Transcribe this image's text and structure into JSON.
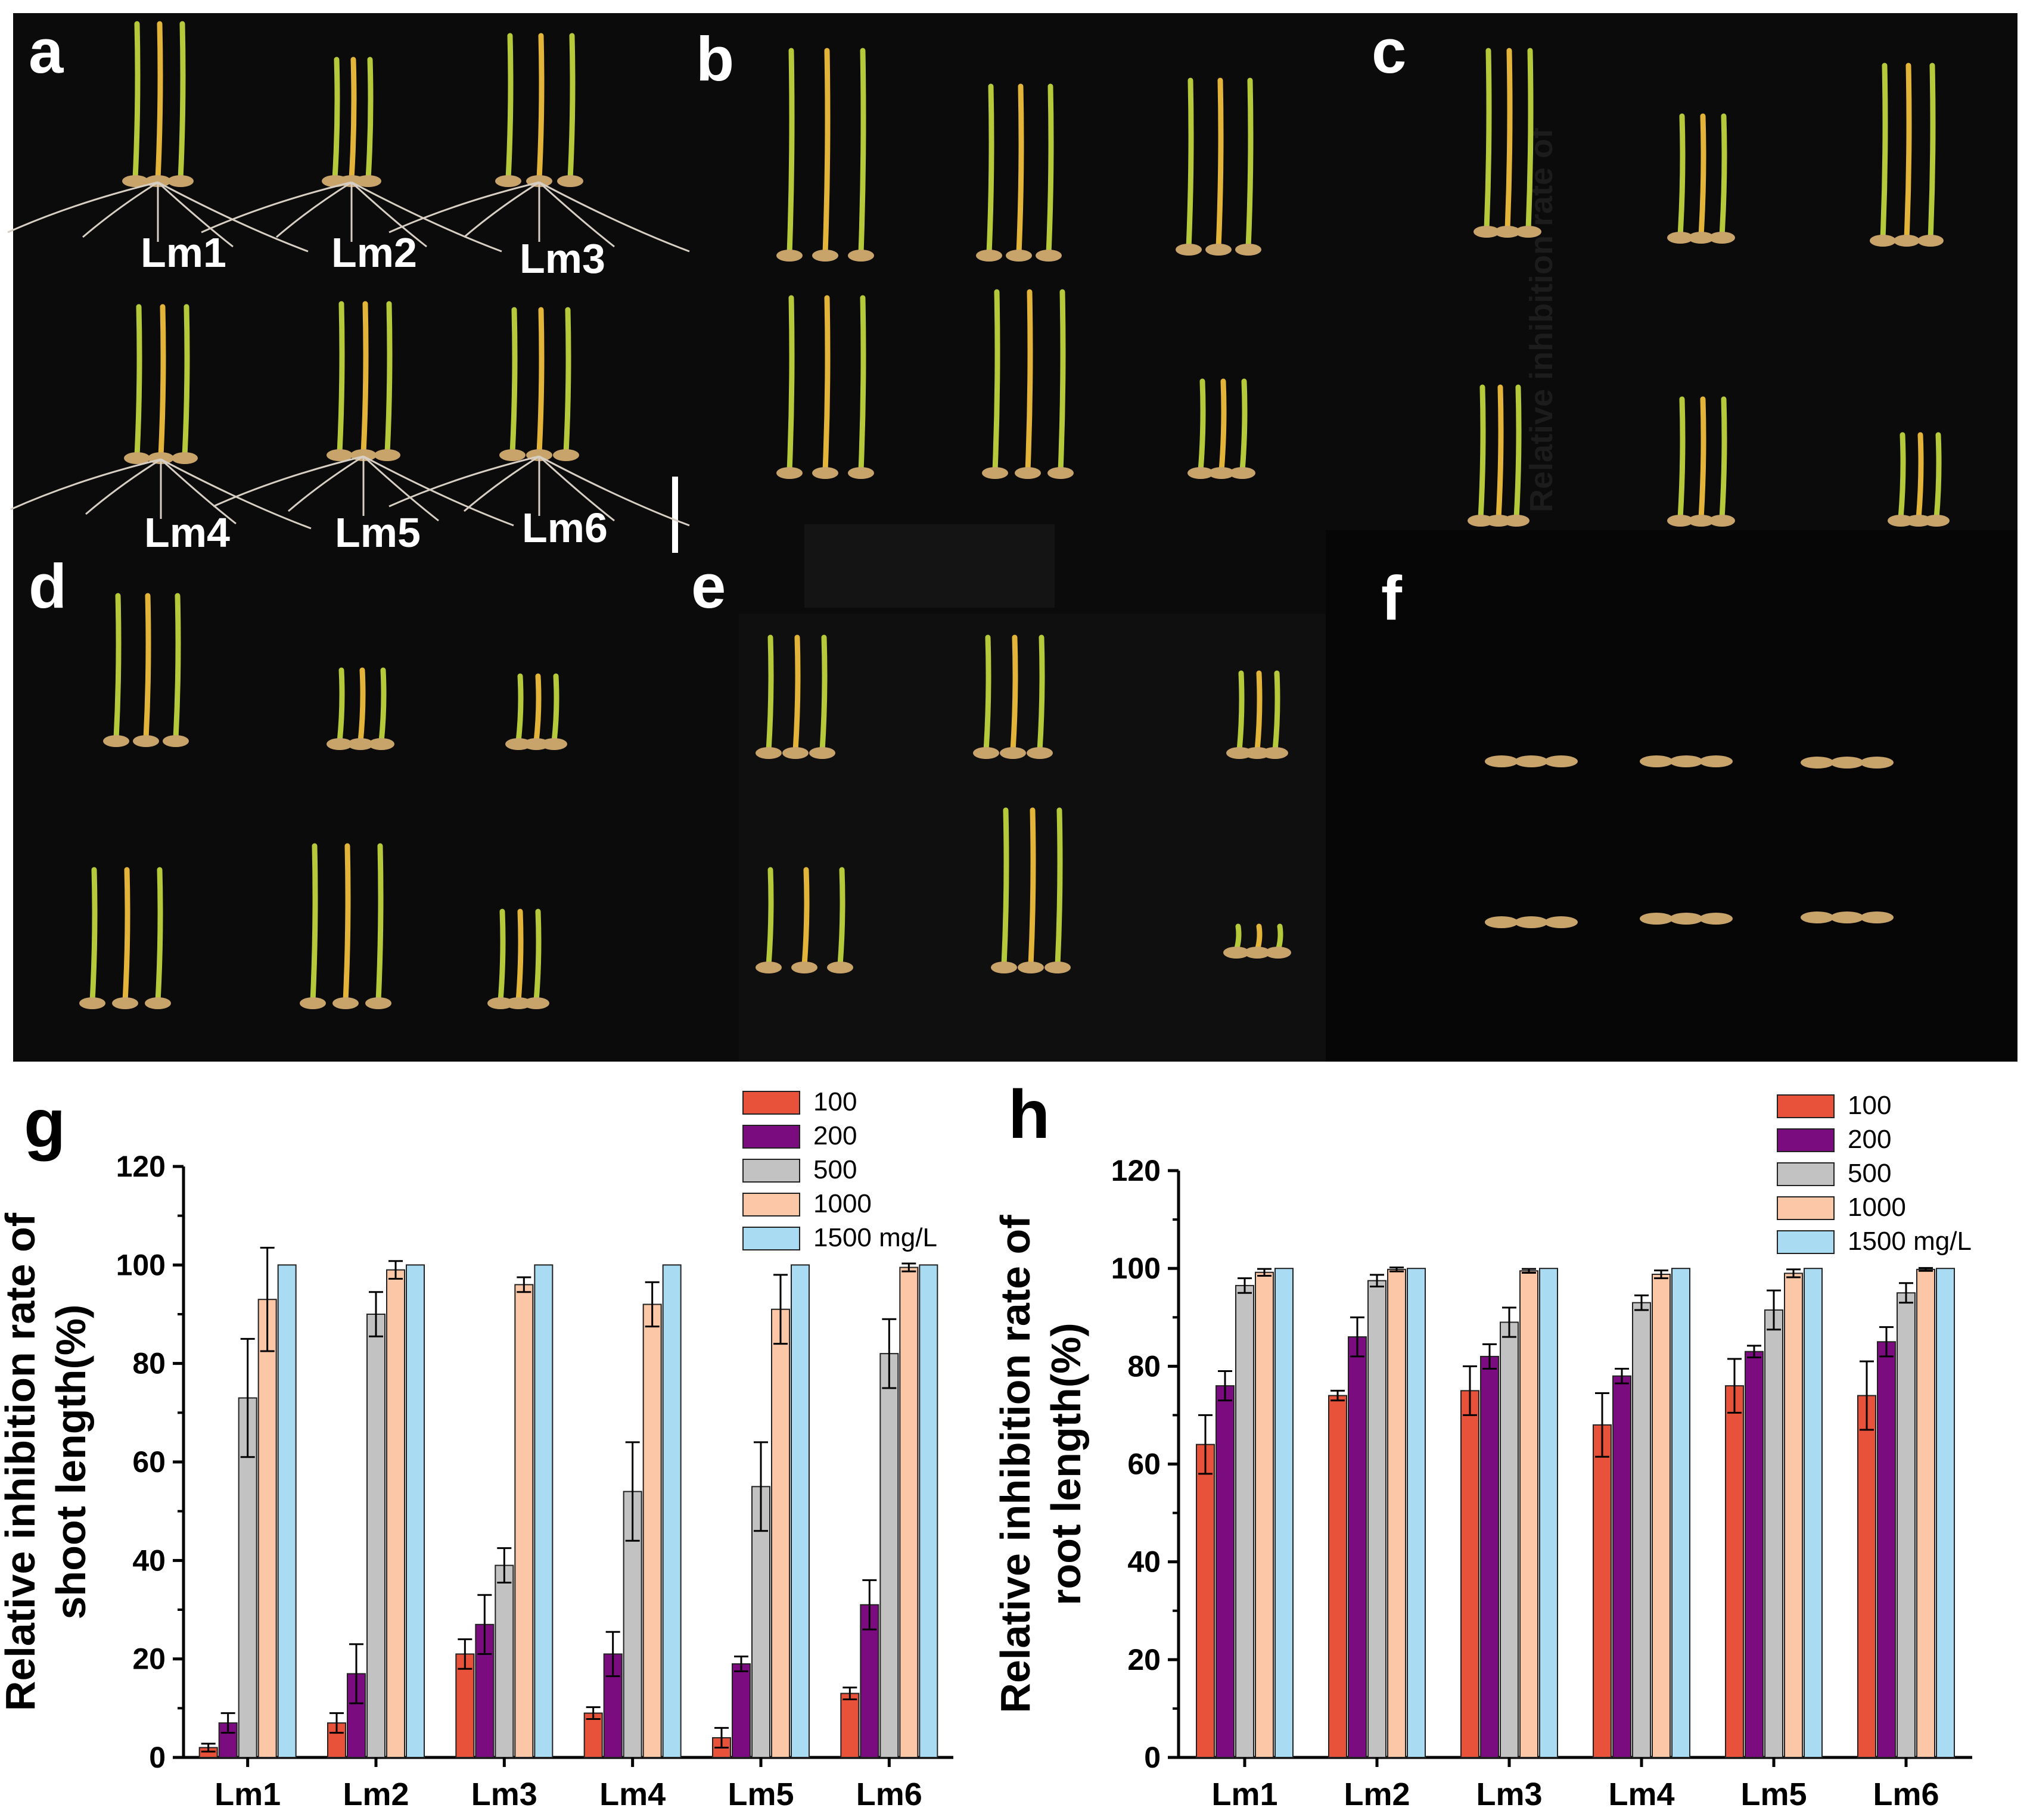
{
  "photo_panels": {
    "a": {
      "letter": "a",
      "labels": [
        "Lm1",
        "Lm2",
        "Lm3",
        "Lm4",
        "Lm5",
        "Lm6"
      ]
    },
    "b": {
      "letter": "b"
    },
    "c": {
      "letter": "c",
      "overlay_text": "Relative inhibition rate of"
    },
    "d": {
      "letter": "d"
    },
    "e": {
      "letter": "e"
    },
    "f": {
      "letter": "f"
    }
  },
  "colors": {
    "photo_bg": "#0b0b0b",
    "seedling_green": "#b5c93a",
    "seedling_yellow": "#e2b43a",
    "root_white": "#d8cfc4",
    "seed_tan": "#c9a46a"
  },
  "chart_data": [
    {
      "panel": "g",
      "type": "bar",
      "categories": [
        "Lm1",
        "Lm2",
        "Lm3",
        "Lm4",
        "Lm5",
        "Lm6"
      ],
      "series": [
        {
          "name": "100",
          "color": "#e8523a",
          "values": [
            2,
            7,
            21,
            9,
            4,
            13
          ],
          "errors": [
            0.8,
            2,
            3,
            1.2,
            2,
            1.2
          ]
        },
        {
          "name": "200",
          "color": "#7b0c80",
          "values": [
            7,
            17,
            27,
            21,
            19,
            31
          ],
          "errors": [
            2,
            6,
            6,
            4.5,
            1.5,
            5
          ]
        },
        {
          "name": "500",
          "color": "#c2c2c2",
          "values": [
            73,
            90,
            39,
            54,
            55,
            82
          ],
          "errors": [
            12,
            4.5,
            3.5,
            10,
            9,
            7
          ]
        },
        {
          "name": "1000",
          "color": "#fbc7a6",
          "values": [
            93,
            99,
            96,
            92,
            91,
            99.5
          ],
          "errors": [
            10.5,
            1.8,
            1.5,
            4.5,
            7,
            0.8
          ]
        },
        {
          "name": "1500 mg/L",
          "color": "#a9dcf3",
          "values": [
            100,
            100,
            100,
            100,
            100,
            100
          ],
          "errors": [
            0,
            0,
            0,
            0,
            0,
            0
          ]
        }
      ],
      "ylabel_line1": "Relative inhibition rate of",
      "ylabel_line2": "shoot length(%)",
      "ylim": [
        0,
        120
      ],
      "yticks": [
        "0",
        "20",
        "40",
        "60",
        "80",
        "100",
        "120"
      ],
      "legend_position": "top-right"
    },
    {
      "panel": "h",
      "type": "bar",
      "categories": [
        "Lm1",
        "Lm2",
        "Lm3",
        "Lm4",
        "Lm5",
        "Lm6"
      ],
      "series": [
        {
          "name": "100",
          "color": "#e8523a",
          "values": [
            64,
            74,
            75,
            68,
            76,
            74
          ],
          "errors": [
            6,
            1,
            5,
            6.5,
            5.5,
            7
          ]
        },
        {
          "name": "200",
          "color": "#7b0c80",
          "values": [
            76,
            86,
            82,
            78,
            83,
            85
          ],
          "errors": [
            3,
            4,
            2.5,
            1.5,
            1.2,
            3
          ]
        },
        {
          "name": "500",
          "color": "#c2c2c2",
          "values": [
            96.5,
            97.5,
            89,
            93,
            91.5,
            95
          ],
          "errors": [
            1.5,
            1.2,
            3,
            1.5,
            4,
            2
          ]
        },
        {
          "name": "1000",
          "color": "#fbc7a6",
          "values": [
            99.2,
            99.8,
            99.5,
            98.8,
            99,
            99.8
          ],
          "errors": [
            0.7,
            0.4,
            0.4,
            0.8,
            0.8,
            0.3
          ]
        },
        {
          "name": "1500 mg/L",
          "color": "#a9dcf3",
          "values": [
            100,
            100,
            100,
            100,
            100,
            100
          ],
          "errors": [
            0,
            0,
            0,
            0,
            0,
            0
          ]
        }
      ],
      "ylabel_line1": "Relative inhibition rate of",
      "ylabel_line2": "root length(%)",
      "ylim": [
        0,
        120
      ],
      "yticks": [
        "0",
        "20",
        "40",
        "60",
        "80",
        "100",
        "120"
      ],
      "legend_position": "top-right"
    }
  ]
}
